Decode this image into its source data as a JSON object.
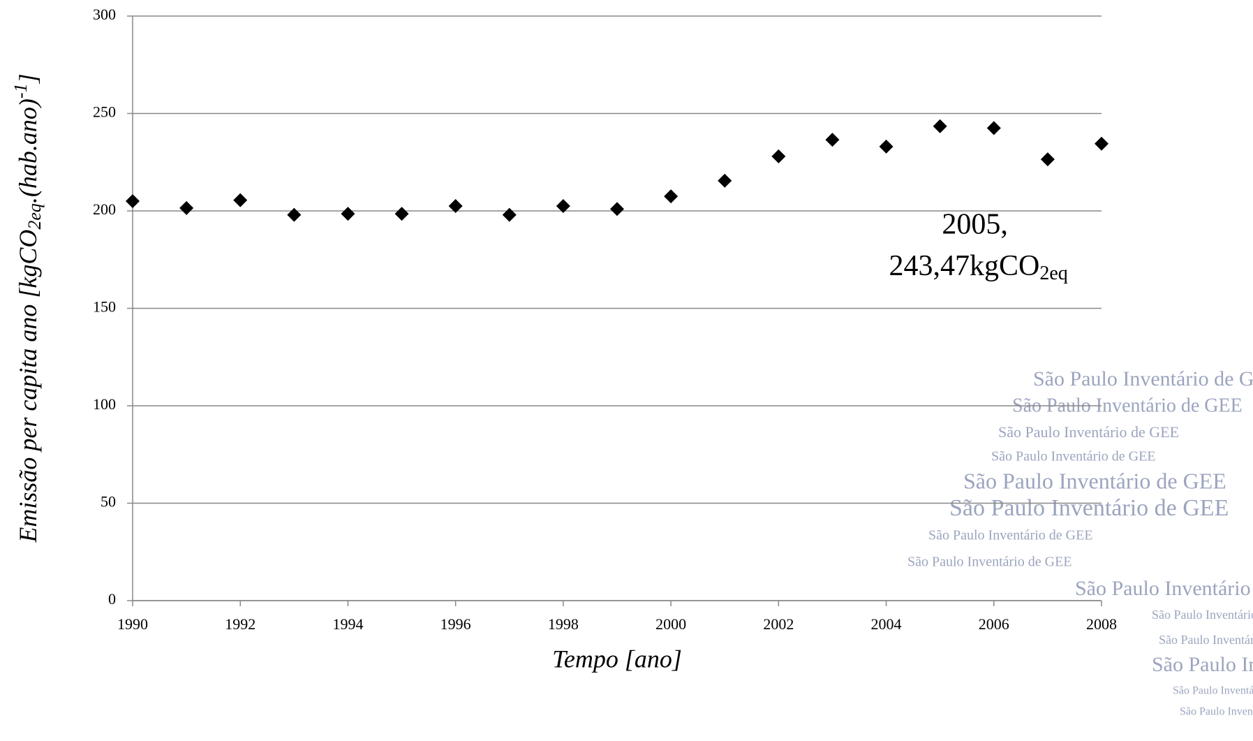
{
  "chart_data": {
    "type": "scatter",
    "x_label": "Tempo [ano]",
    "y_label_parts": [
      "Emissão per capita ano [kgCO",
      "2eq",
      ".(hab.ano)",
      "-1",
      "]"
    ],
    "annotation": {
      "x": 2005,
      "lines": [
        "2005,",
        "243,47kgCO",
        "2eq"
      ]
    },
    "watermark": "São Paulo Inventário de GEE",
    "x": [
      1990,
      1991,
      1992,
      1993,
      1994,
      1995,
      1996,
      1997,
      1998,
      1999,
      2000,
      2001,
      2002,
      2003,
      2004,
      2005,
      2006,
      2007,
      2008
    ],
    "values": [
      205,
      201.5,
      205.5,
      198,
      198.5,
      198.5,
      202.5,
      198,
      202.5,
      201,
      207.5,
      215.5,
      228,
      236.5,
      233,
      243.47,
      242.5,
      226.5,
      234.5
    ],
    "color": "#000000",
    "xlim": [
      1990,
      2008
    ],
    "xticks": [
      1990,
      1992,
      1994,
      1996,
      1998,
      2000,
      2002,
      2004,
      2006,
      2008
    ],
    "ylim": [
      0,
      300
    ],
    "yticks": [
      0,
      50,
      100,
      150,
      200,
      250,
      300
    ],
    "grid": true
  }
}
